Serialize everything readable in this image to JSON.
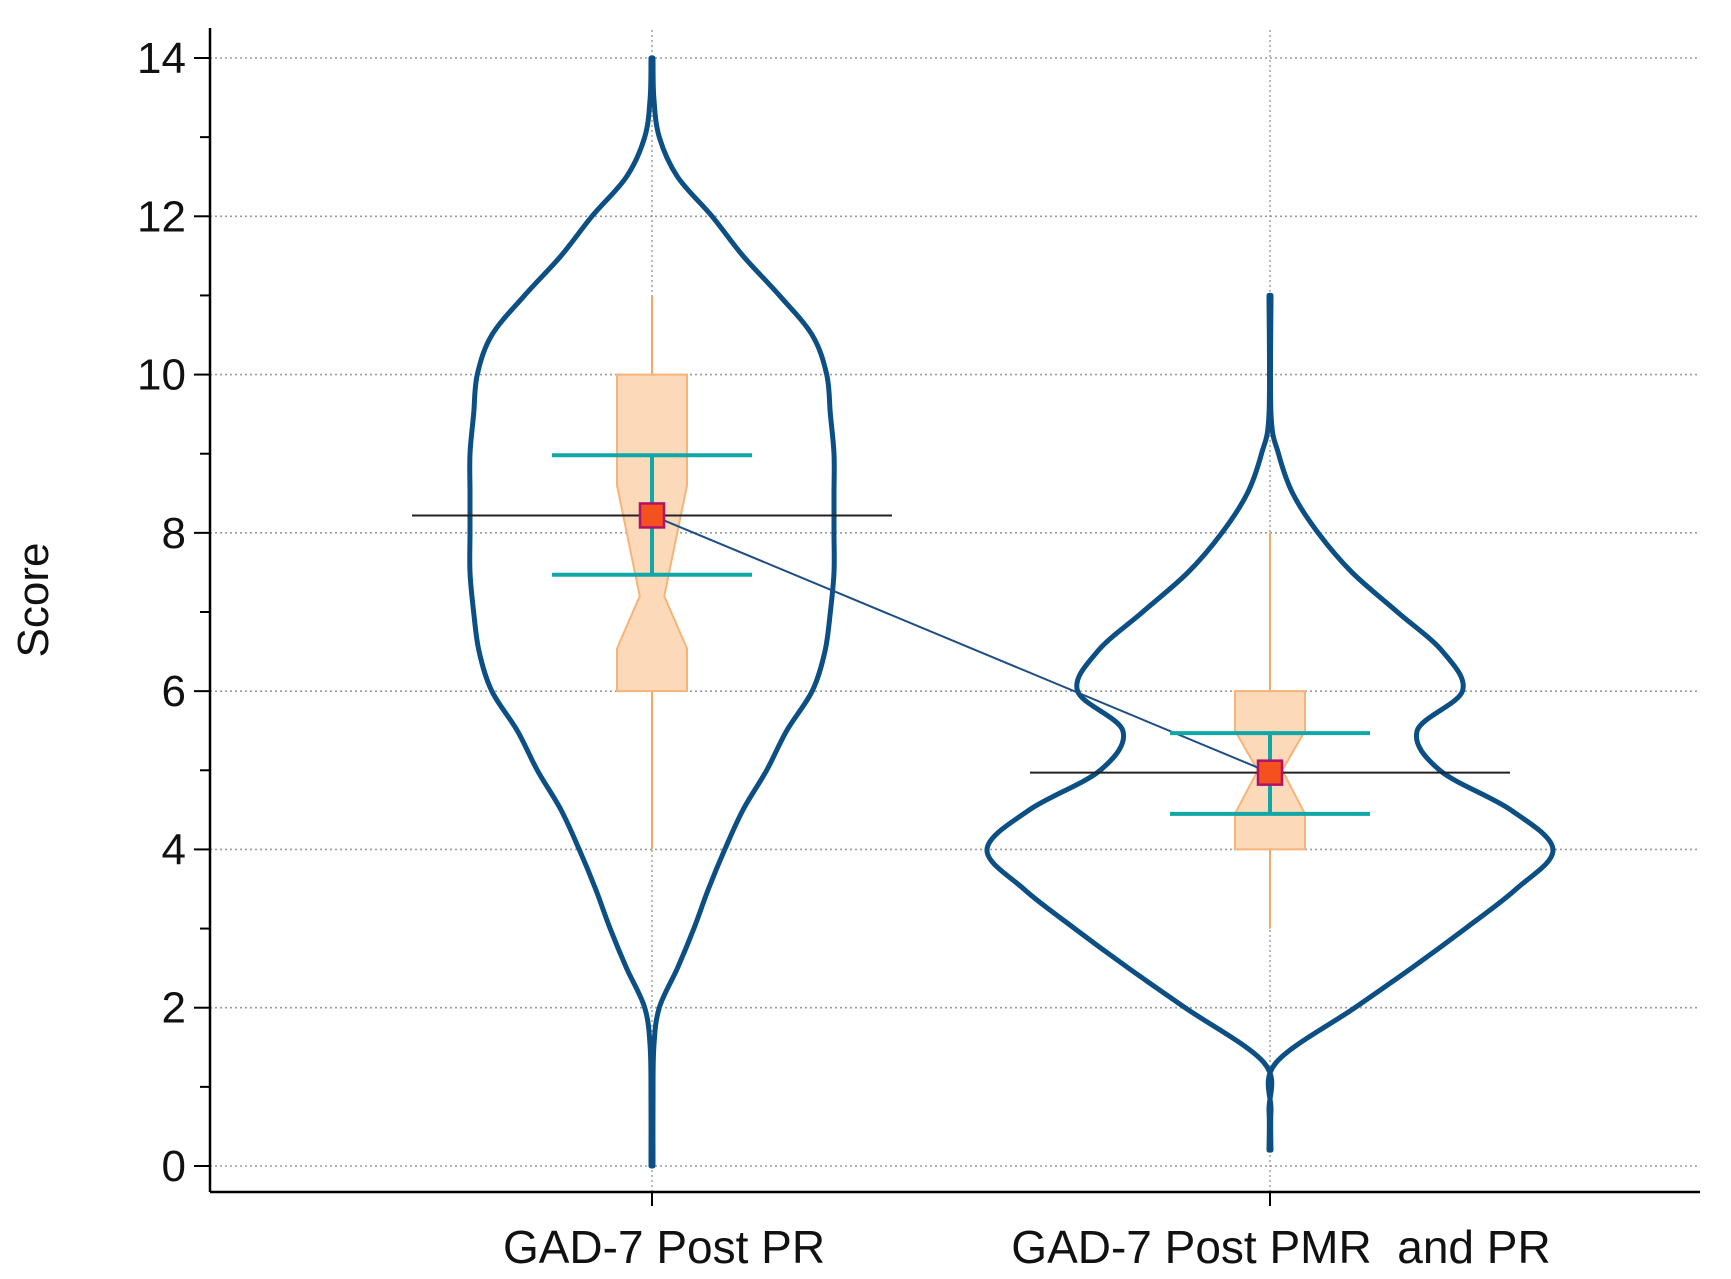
{
  "chart_data": {
    "type": "violin",
    "ylabel": "Score",
    "xlabel": "",
    "ylim": [
      0,
      14
    ],
    "yticks": [
      0,
      2,
      4,
      6,
      8,
      10,
      12,
      14
    ],
    "grid": true,
    "categories": [
      "GAD-7 Post PR",
      "GAD-7 Post PMR  and PR"
    ],
    "groups": [
      {
        "name": "GAD-7 Post PR",
        "min": 4,
        "q1": 6,
        "median": 7.2,
        "q3": 10,
        "max": 11,
        "mean": 8.22,
        "ci_low": 7.47,
        "ci_high": 8.98,
        "violin_range": [
          0,
          14
        ],
        "density_profile": [
          [
            0.0,
            0.0
          ],
          [
            0.8,
            0.0
          ],
          [
            1.5,
            0.01
          ],
          [
            2.0,
            0.04
          ],
          [
            2.5,
            0.14
          ],
          [
            3.0,
            0.23
          ],
          [
            3.5,
            0.31
          ],
          [
            4.0,
            0.4
          ],
          [
            4.5,
            0.5
          ],
          [
            5.0,
            0.63
          ],
          [
            5.5,
            0.74
          ],
          [
            6.0,
            0.88
          ],
          [
            6.5,
            0.95
          ],
          [
            7.0,
            0.98
          ],
          [
            7.5,
            1.0
          ],
          [
            8.0,
            1.0
          ],
          [
            8.5,
            1.0
          ],
          [
            9.0,
            1.0
          ],
          [
            9.5,
            0.98
          ],
          [
            10.0,
            0.96
          ],
          [
            10.5,
            0.88
          ],
          [
            11.0,
            0.7
          ],
          [
            11.5,
            0.5
          ],
          [
            12.0,
            0.33
          ],
          [
            12.5,
            0.14
          ],
          [
            13.0,
            0.04
          ],
          [
            13.5,
            0.01
          ],
          [
            14.0,
            0.0
          ]
        ]
      },
      {
        "name": "GAD-7 Post PMR  and PR",
        "min": 3,
        "q1": 4,
        "median": 5,
        "q3": 6,
        "max": 8,
        "mean": 4.97,
        "ci_low": 4.45,
        "ci_high": 5.47,
        "violin_range": [
          0.2,
          11
        ],
        "density_profile": [
          [
            0.2,
            0.0
          ],
          [
            0.7,
            0.0
          ],
          [
            1.3,
            0.02
          ],
          [
            2.0,
            0.3
          ],
          [
            2.5,
            0.5
          ],
          [
            3.0,
            0.69
          ],
          [
            3.5,
            0.87
          ],
          [
            4.0,
            1.0
          ],
          [
            4.5,
            0.85
          ],
          [
            5.0,
            0.6
          ],
          [
            5.5,
            0.52
          ],
          [
            6.0,
            0.68
          ],
          [
            6.5,
            0.61
          ],
          [
            7.0,
            0.45
          ],
          [
            7.5,
            0.29
          ],
          [
            8.0,
            0.17
          ],
          [
            8.5,
            0.08
          ],
          [
            9.0,
            0.03
          ],
          [
            9.5,
            0.0
          ],
          [
            11.0,
            0.0
          ]
        ]
      }
    ],
    "colors": {
      "violin": "#0b4f85",
      "box_fill": "#fcd9b8",
      "box_stroke": "#f6b37a",
      "whisker": "#f2a868",
      "ci": "#12a7a7",
      "mean_fill": "#f4511e",
      "mean_stroke": "#b0126a",
      "mean_line": "#222222",
      "connector": "#1f4e86",
      "grid": "#9a9a9a",
      "axis": "#000000"
    }
  }
}
